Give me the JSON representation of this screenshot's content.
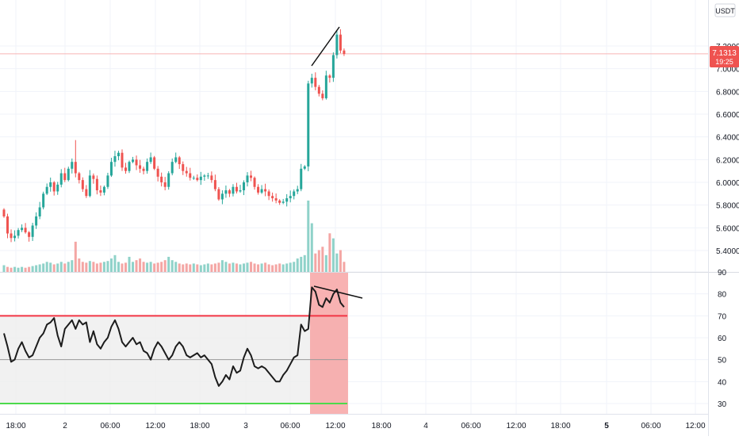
{
  "currency_label": "USDT",
  "price_tag": {
    "price": "7.1313",
    "countdown": "19:25"
  },
  "colors": {
    "up": "#26a69a",
    "down": "#ef5350",
    "up_vol": "#8fd2c9",
    "down_vol": "#f4a6a4",
    "grid": "#f0f3fa",
    "axis_text": "#131722",
    "rsi_line": "#1c1c1c",
    "rsi_upper": "#f23645",
    "rsi_lower": "#4cda4c",
    "rsi_mid": "#9a9a9a",
    "rsi_band": "#ededed",
    "highlight": "#f7a4a4",
    "tag_bg": "#ef5350"
  },
  "chart_data": [
    {
      "type": "candlestick",
      "title": "",
      "ylim": [
        5.3,
        7.45
      ],
      "y_ticks": [
        "7.2000",
        "7.0000",
        "6.8000",
        "6.6000",
        "6.4000",
        "6.2000",
        "6.0000",
        "5.8000",
        "5.6000",
        "5.4000"
      ],
      "x_ticks": [
        "18:00",
        "2",
        "06:00",
        "12:00",
        "18:00",
        "3",
        "06:00",
        "12:00",
        "18:00",
        "4",
        "06:00",
        "12:00",
        "18:00",
        "5",
        "06:00",
        "12:00"
      ],
      "last_price": 7.1313,
      "closes": [
        5.7,
        5.55,
        5.51,
        5.53,
        5.58,
        5.6,
        5.56,
        5.52,
        5.62,
        5.7,
        5.78,
        5.9,
        5.96,
        6.0,
        5.92,
        5.98,
        6.08,
        6.02,
        6.12,
        6.18,
        6.08,
        6.02,
        5.94,
        5.88,
        6.06,
        6.03,
        5.93,
        5.91,
        5.96,
        6.06,
        6.18,
        6.23,
        6.26,
        6.13,
        6.1,
        6.18,
        6.2,
        6.15,
        6.12,
        6.1,
        6.18,
        6.22,
        6.12,
        6.05,
        6.0,
        5.96,
        6.08,
        6.18,
        6.22,
        6.16,
        6.1,
        6.08,
        6.04,
        6.04,
        6.02,
        6.05,
        6.06,
        6.06,
        6.02,
        5.94,
        5.85,
        5.9,
        5.93,
        5.9,
        5.96,
        5.92,
        5.93,
        6.0,
        6.06,
        6.04,
        5.96,
        5.91,
        5.94,
        5.92,
        5.88,
        5.86,
        5.84,
        5.82,
        5.83,
        5.86,
        5.88,
        5.92,
        5.94,
        6.12,
        6.14,
        6.87,
        6.92,
        6.84,
        6.78,
        6.74,
        6.94,
        6.92,
        7.12,
        7.3,
        7.16,
        7.13
      ],
      "volumes": [
        8,
        6,
        5,
        6,
        5,
        6,
        5,
        6,
        7,
        8,
        9,
        10,
        12,
        11,
        9,
        10,
        12,
        10,
        12,
        14,
        36,
        16,
        12,
        11,
        13,
        12,
        10,
        11,
        12,
        13,
        16,
        20,
        12,
        10,
        11,
        18,
        12,
        14,
        16,
        12,
        11,
        12,
        10,
        11,
        12,
        14,
        18,
        14,
        12,
        10,
        9,
        10,
        9,
        10,
        9,
        8,
        9,
        10,
        9,
        10,
        11,
        14,
        12,
        10,
        11,
        10,
        9,
        10,
        11,
        12,
        10,
        9,
        10,
        11,
        9,
        8,
        9,
        10,
        9,
        10,
        11,
        12,
        16,
        18,
        20,
        85,
        58,
        22,
        26,
        30,
        20,
        46,
        40,
        22,
        26,
        12
      ]
    },
    {
      "type": "line",
      "title": "",
      "ylim": [
        25,
        91
      ],
      "y_ticks": [
        "90",
        "80",
        "70",
        "60",
        "50",
        "40",
        "30"
      ],
      "bands": {
        "upper": 70,
        "middle": 50,
        "lower": 30
      },
      "values": [
        62,
        56,
        49,
        50,
        55,
        58,
        54,
        51,
        52,
        56,
        60,
        62,
        66,
        67,
        69,
        61,
        56,
        64,
        66,
        68,
        64,
        68,
        66,
        67,
        58,
        63,
        57,
        55,
        58,
        60,
        65,
        68,
        64,
        58,
        56,
        58,
        60,
        57,
        58,
        54,
        53,
        50,
        55,
        58,
        56,
        53,
        50,
        52,
        56,
        58,
        56,
        52,
        51,
        52,
        53,
        51,
        52,
        50,
        48,
        42,
        38,
        40,
        43,
        41,
        47,
        44,
        45,
        51,
        55,
        52,
        47,
        46,
        47,
        46,
        44,
        42,
        40,
        40,
        43,
        45,
        48,
        51,
        52,
        66,
        63,
        64,
        83,
        81,
        75,
        74,
        78,
        76,
        80,
        82,
        76,
        74
      ]
    }
  ]
}
